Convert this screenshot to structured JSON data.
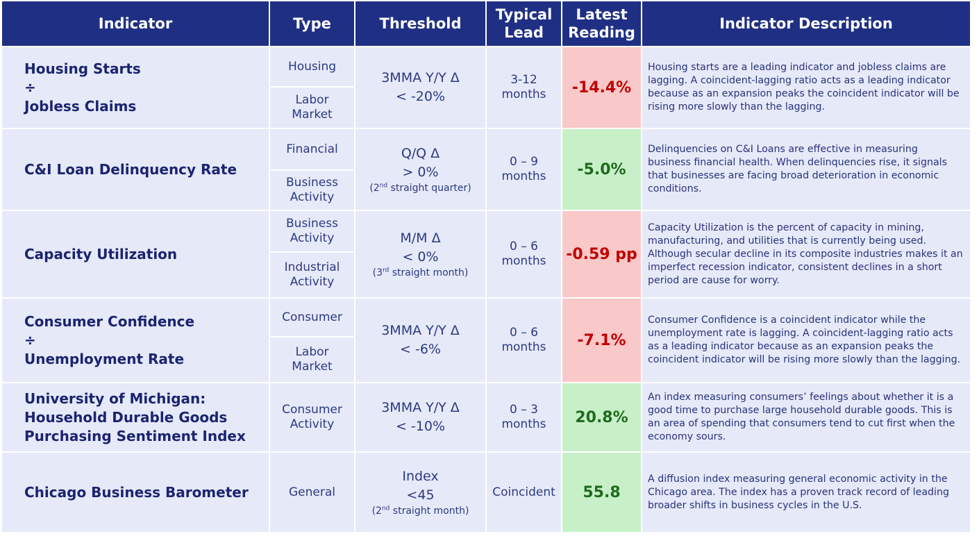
{
  "header": {
    "indicator": "Indicator",
    "type": "Type",
    "threshold": "Threshold",
    "lead_line1": "Typical",
    "lead_line2": "Lead",
    "reading_line1": "Latest",
    "reading_line2": "Reading",
    "description": "Indicator Description"
  },
  "rows": [
    {
      "name_lines": [
        "Housing Starts",
        "÷",
        "Jobless Claims"
      ],
      "types": [
        [
          "Housing"
        ],
        [
          "Labor",
          "Market"
        ]
      ],
      "threshold_main": [
        "3MMA Y/Y Δ",
        "< -20%"
      ],
      "threshold_note": null,
      "lead": [
        "3-12",
        "months"
      ],
      "reading": "-14.4%",
      "status": "negative",
      "description": "Housing starts are a leading indicator and jobless claims are lagging. A coincident-lagging ratio acts as a leading indicator because as an expansion peaks the coincident indicator will be rising more slowly than the lagging."
    },
    {
      "name_lines": [
        "C&I Loan Delinquency Rate"
      ],
      "types": [
        [
          "Financial"
        ],
        [
          "Business",
          "Activity"
        ]
      ],
      "threshold_main": [
        "Q/Q Δ",
        "> 0%"
      ],
      "threshold_note": {
        "pre": "(2",
        "sup": "nd",
        "post": " straight quarter)"
      },
      "lead": [
        "0 – 9",
        "months"
      ],
      "reading": "-5.0%",
      "status": "positive",
      "description": "Delinquencies on C&I Loans are effective in measuring business financial health. When delinquencies rise, it signals that businesses are facing broad deterioration in economic conditions."
    },
    {
      "name_lines": [
        "Capacity Utilization"
      ],
      "types": [
        [
          "Business",
          "Activity"
        ],
        [
          "Industrial",
          "Activity"
        ]
      ],
      "threshold_main": [
        "M/M Δ",
        "< 0%"
      ],
      "threshold_note": {
        "pre": "(3",
        "sup": "rd",
        "post": " straight month)"
      },
      "lead": [
        "0 – 6",
        "months"
      ],
      "reading": "-0.59 pp",
      "status": "negative",
      "description": "Capacity Utilization is the percent of capacity in mining, manufacturing, and utilities that is currently being used. Although secular decline in its composite industries makes it an imperfect recession indicator, consistent declines in a short period are cause for worry."
    },
    {
      "name_lines": [
        "Consumer Confidence",
        "÷",
        "Unemployment Rate"
      ],
      "types": [
        [
          "Consumer"
        ],
        [
          "Labor",
          "Market"
        ]
      ],
      "threshold_main": [
        "3MMA Y/Y Δ",
        "< -6%"
      ],
      "threshold_note": null,
      "lead": [
        "0 – 6",
        "months"
      ],
      "reading": "-7.1%",
      "status": "negative",
      "description": "Consumer Confidence is a coincident indicator while the unemployment rate is lagging. A coincident-lagging ratio acts as a leading indicator because as an expansion peaks the coincident indicator will be rising more slowly than the lagging."
    },
    {
      "name_lines": [
        "University of Michigan:",
        "Household Durable Goods",
        "Purchasing Sentiment Index"
      ],
      "types": [
        [
          "Consumer",
          "Activity"
        ]
      ],
      "threshold_main": [
        "3MMA Y/Y Δ",
        "< -10%"
      ],
      "threshold_note": null,
      "lead": [
        "0 – 3",
        "months"
      ],
      "reading": "20.8%",
      "status": "positive",
      "description": "An index measuring consumers’ feelings about whether it is a good time to purchase large household durable goods. This is an area of spending that consumers tend to cut first when the economy sours."
    },
    {
      "name_lines": [
        "Chicago Business Barometer"
      ],
      "types": [
        [
          "General"
        ]
      ],
      "threshold_main": [
        "Index",
        "<45"
      ],
      "threshold_note": {
        "pre": "(2",
        "sup": "nd",
        "post": " straight month)"
      },
      "lead": [
        "Coincident"
      ],
      "reading": "55.8",
      "status": "positive",
      "description": "A diffusion index measuring general economic activity in the Chicago area. The index has a proven track record of leading broader shifts in business cycles in the U.S."
    }
  ]
}
